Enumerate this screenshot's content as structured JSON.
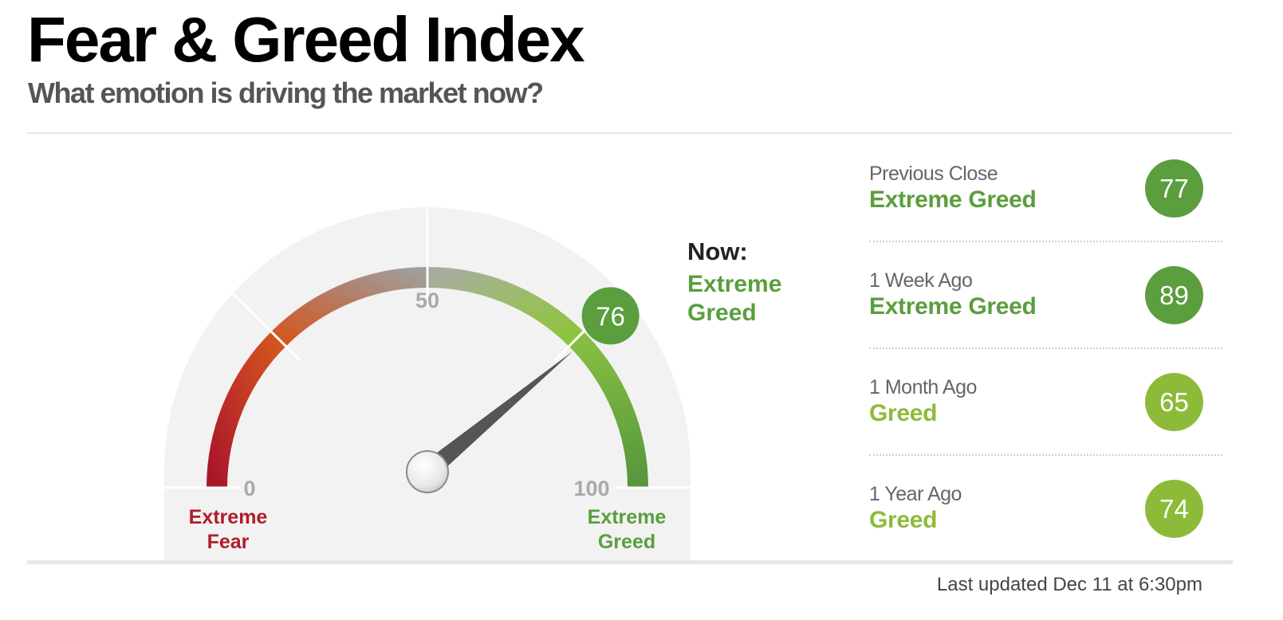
{
  "header": {
    "title": "Fear & Greed Index",
    "subtitle": "What emotion is driving the market now?"
  },
  "gauge": {
    "value": 76,
    "min_label": "0",
    "mid_label": "50",
    "max_label": "100",
    "left_caption_line1": "Extreme",
    "left_caption_line2": "Fear",
    "right_caption_line1": "Extreme",
    "right_caption_line2": "Greed",
    "now_label": "Now:",
    "now_state": "Extreme Greed",
    "fear_color": "#b01c2c",
    "greed_color": "#5a9e3d"
  },
  "history": [
    {
      "label": "Previous Close",
      "state": "Extreme Greed",
      "value": "77",
      "color": "#5a9e3d"
    },
    {
      "label": "1 Week Ago",
      "state": "Extreme Greed",
      "value": "89",
      "color": "#5a9e3d"
    },
    {
      "label": "1 Month Ago",
      "state": "Greed",
      "value": "65",
      "color": "#8dbb39"
    },
    {
      "label": "1 Year Ago",
      "state": "Greed",
      "value": "74",
      "color": "#8dbb39"
    }
  ],
  "footer": {
    "last_updated": "Last updated Dec 11 at 6:30pm"
  }
}
